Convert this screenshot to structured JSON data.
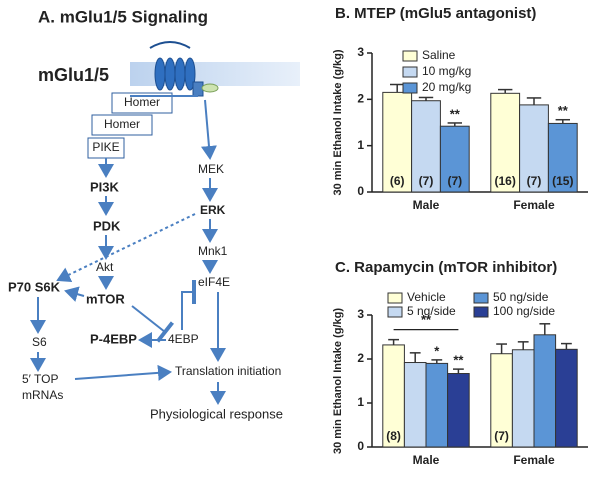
{
  "diagram": {
    "title": "A. mGlu1/5 Signaling",
    "nodes": [
      "mGlu1/5",
      "Homer",
      "Homer",
      "PIKE",
      "PI3K",
      "PDK",
      "Akt",
      "P70 S6K",
      "mTOR",
      "S6",
      "5′ TOP",
      "mRNAs",
      "P-4EBP",
      "4EBP",
      "MEK",
      "ERK",
      "Mnk1",
      "eIF4E",
      "Translation initiation",
      "Physiological response"
    ]
  },
  "chart_data": [
    {
      "type": "bar",
      "title": "B. MTEP (mGlu5 antagonist)",
      "ylabel": "30 min Ethanol Intake (g/kg)",
      "categories": [
        "Male",
        "Female"
      ],
      "ylim": [
        0,
        3
      ],
      "yticks": [
        0,
        1,
        2,
        3
      ],
      "legend": "upper left",
      "series": [
        {
          "name": "Saline",
          "color": "#ffffd6",
          "values": [
            2.15,
            2.13
          ],
          "errors": [
            0.17,
            0.08
          ],
          "n_labels": [
            "(6)",
            "(16)"
          ],
          "annotations": [
            null,
            null
          ]
        },
        {
          "name": "10 mg/kg",
          "color": "#c5d9f1",
          "values": [
            1.97,
            1.88
          ],
          "errors": [
            0.07,
            0.15
          ],
          "n_labels": [
            "(7)",
            "(7)"
          ],
          "annotations": [
            null,
            null
          ]
        },
        {
          "name": "20 mg/kg",
          "color": "#5b95d6",
          "values": [
            1.42,
            1.48
          ],
          "errors": [
            0.07,
            0.08
          ],
          "n_labels": [
            "(7)",
            "(15)"
          ],
          "annotations": [
            "**",
            "**"
          ]
        }
      ]
    },
    {
      "type": "bar",
      "title": "C. Rapamycin (mTOR inhibitor)",
      "ylabel": "30 min Ethanol Intake (g/kg)",
      "categories": [
        "Male",
        "Female"
      ],
      "ylim": [
        0,
        3
      ],
      "yticks": [
        0,
        1,
        2,
        3
      ],
      "legend": "upper left",
      "bracket": {
        "label": "**"
      },
      "series": [
        {
          "name": "Vehicle",
          "color": "#ffffd6",
          "values": [
            2.32,
            2.12
          ],
          "errors": [
            0.12,
            0.22
          ],
          "n_labels": [
            "(8)",
            "(7)"
          ],
          "annotations": [
            null,
            null
          ]
        },
        {
          "name": "5 ng/side",
          "color": "#c5d9f1",
          "values": [
            1.92,
            2.21
          ],
          "errors": [
            0.22,
            0.18
          ],
          "n_labels": [
            null,
            null
          ],
          "annotations": [
            null,
            null
          ]
        },
        {
          "name": "50 ng/side",
          "color": "#5b95d6",
          "values": [
            1.9,
            2.55
          ],
          "errors": [
            0.08,
            0.25
          ],
          "n_labels": [
            null,
            null
          ],
          "annotations": [
            "*",
            null
          ]
        },
        {
          "name": "100 ng/side",
          "color": "#2a3f95",
          "values": [
            1.67,
            2.22
          ],
          "errors": [
            0.1,
            0.13
          ],
          "n_labels": [
            null,
            null
          ],
          "annotations": [
            "**",
            null
          ]
        }
      ]
    }
  ]
}
